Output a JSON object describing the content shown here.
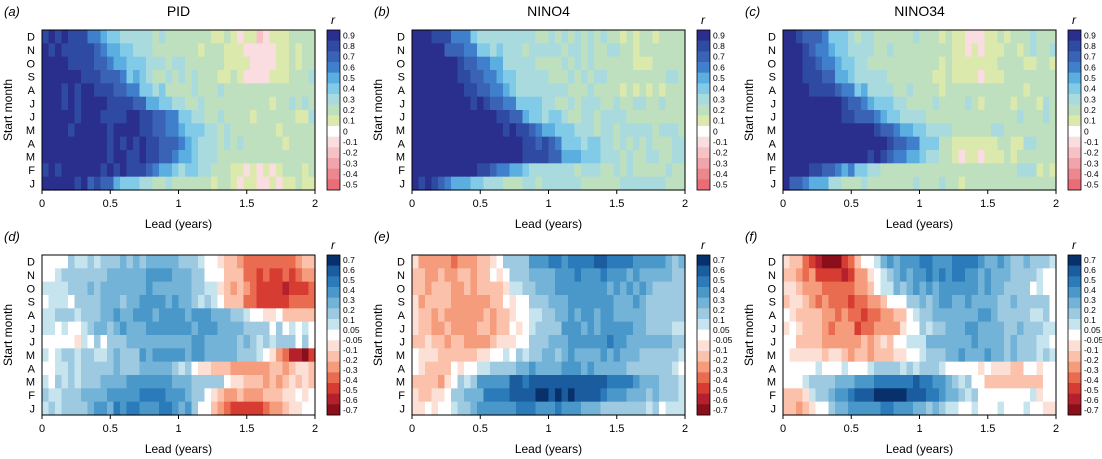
{
  "chart_data": [
    {
      "type": "heatmap",
      "panel_label": "(a)",
      "title": "PID",
      "xlabel": "Lead (years)",
      "ylabel": "Start month",
      "xlim": [
        0,
        2
      ],
      "x_ticks": [
        "0",
        "0.5",
        "1",
        "1.5",
        "2"
      ],
      "y_categories": [
        "D",
        "N",
        "O",
        "S",
        "A",
        "J",
        "J",
        "M",
        "A",
        "M",
        "F",
        "J"
      ],
      "colorbar": {
        "label": "r",
        "levels": [
          "0.9",
          "0.8",
          "0.7",
          "0.6",
          "0.5",
          "0.4",
          "0.3",
          "0.2",
          "0.1",
          "0",
          "-0.1",
          "-0.2",
          "-0.3",
          "-0.4",
          "-0.5"
        ]
      },
      "pattern": {
        "decay_center": [
          0.45,
          0.5,
          0.55,
          0.6,
          0.68,
          0.8,
          0.95,
          1.0,
          1.02,
          1.02,
          0.9,
          0.55
        ],
        "high": 0.85,
        "tail": 0.15,
        "neg_at": 1.6,
        "neg_depth": 0.2,
        "neg_rows": [
          0,
          1,
          2,
          3,
          10,
          11
        ]
      }
    },
    {
      "type": "heatmap",
      "panel_label": "(b)",
      "title": "NINO4",
      "xlabel": "Lead (years)",
      "ylabel": "Start month",
      "xlim": [
        0,
        2
      ],
      "x_ticks": [
        "0",
        "0.5",
        "1",
        "1.5",
        "2"
      ],
      "y_categories": [
        "D",
        "N",
        "O",
        "S",
        "A",
        "J",
        "J",
        "M",
        "A",
        "M",
        "F",
        "J"
      ],
      "colorbar": {
        "label": "r",
        "levels": [
          "0.9",
          "0.8",
          "0.7",
          "0.6",
          "0.5",
          "0.4",
          "0.3",
          "0.2",
          "0.1",
          "0",
          "-0.1",
          "-0.2",
          "-0.3",
          "-0.4",
          "-0.5"
        ]
      },
      "pattern": {
        "decay_center": [
          0.35,
          0.4,
          0.5,
          0.55,
          0.6,
          0.7,
          0.8,
          0.95,
          1.05,
          1.1,
          0.7,
          0.3
        ],
        "high": 0.9,
        "tail": 0.2,
        "neg_at": 1.7,
        "neg_depth": 0.1,
        "neg_rows": [
          0,
          1,
          2,
          3,
          4
        ]
      }
    },
    {
      "type": "heatmap",
      "panel_label": "(c)",
      "title": "NINO34",
      "xlabel": "Lead (years)",
      "ylabel": "Start month",
      "xlim": [
        0,
        2
      ],
      "x_ticks": [
        "0",
        "0.5",
        "1",
        "1.5",
        "2"
      ],
      "y_categories": [
        "D",
        "N",
        "O",
        "S",
        "A",
        "J",
        "J",
        "M",
        "A",
        "M",
        "F",
        "J"
      ],
      "colorbar": {
        "label": "r",
        "levels": [
          "0.9",
          "0.8",
          "0.7",
          "0.6",
          "0.5",
          "0.4",
          "0.3",
          "0.2",
          "0.1",
          "0",
          "-0.1",
          "-0.2",
          "-0.3",
          "-0.4",
          "-0.5"
        ]
      },
      "pattern": {
        "decay_center": [
          0.3,
          0.32,
          0.35,
          0.4,
          0.5,
          0.6,
          0.7,
          0.85,
          0.95,
          0.9,
          0.45,
          0.2
        ],
        "high": 0.9,
        "tail": 0.15,
        "neg_at": 1.4,
        "neg_depth": 0.15,
        "neg_rows": [
          0,
          1,
          2,
          3,
          8,
          9
        ]
      }
    },
    {
      "type": "heatmap",
      "panel_label": "(d)",
      "title": "",
      "xlabel": "Lead (years)",
      "ylabel": "Start month",
      "xlim": [
        0,
        2
      ],
      "x_ticks": [
        "0",
        "0.5",
        "1",
        "1.5",
        "2"
      ],
      "y_categories": [
        "D",
        "N",
        "O",
        "S",
        "A",
        "J",
        "J",
        "M",
        "A",
        "M",
        "F",
        "J"
      ],
      "colorbar": {
        "label": "r",
        "levels": [
          "0.7",
          "0.6",
          "0.5",
          "0.4",
          "0.3",
          "0.2",
          "0.1",
          "0.05",
          "-0.05",
          "-0.1",
          "-0.2",
          "-0.3",
          "-0.4",
          "-0.5",
          "-0.6",
          "-0.7"
        ]
      },
      "pattern": {
        "rows": [
          {
            "pos_center": 1.0,
            "pos_width": 0.5,
            "pos_amp": 0.25,
            "neg_center": 1.6,
            "neg_width": 0.3,
            "neg_amp": -0.45
          },
          {
            "pos_center": 0.9,
            "pos_width": 0.5,
            "pos_amp": 0.3,
            "neg_center": 1.65,
            "neg_width": 0.3,
            "neg_amp": -0.5
          },
          {
            "pos_center": 0.9,
            "pos_width": 0.5,
            "pos_amp": 0.3,
            "neg_center": 1.7,
            "neg_width": 0.3,
            "neg_amp": -0.55
          },
          {
            "pos_center": 0.9,
            "pos_width": 0.45,
            "pos_amp": 0.3,
            "neg_center": 1.7,
            "neg_width": 0.3,
            "neg_amp": -0.5
          },
          {
            "pos_center": 0.9,
            "pos_width": 0.5,
            "pos_amp": 0.35,
            "neg_center": 1.8,
            "neg_width": 0.25,
            "neg_amp": -0.2
          },
          {
            "pos_center": 0.9,
            "pos_width": 0.5,
            "pos_amp": 0.35,
            "neg_center": 0.2,
            "neg_width": 0.15,
            "neg_amp": -0.1
          },
          {
            "pos_center": 1.0,
            "pos_width": 0.5,
            "pos_amp": 0.3,
            "neg_center": 0.3,
            "neg_width": 0.15,
            "neg_amp": -0.1
          },
          {
            "pos_center": 1.0,
            "pos_width": 0.45,
            "pos_amp": 0.3,
            "neg_center": 1.9,
            "neg_width": 0.15,
            "neg_amp": -0.6
          },
          {
            "pos_center": 0.8,
            "pos_width": 0.35,
            "pos_amp": 0.25,
            "neg_center": 1.5,
            "neg_width": 0.3,
            "neg_amp": -0.3
          },
          {
            "pos_center": 0.8,
            "pos_width": 0.4,
            "pos_amp": 0.35,
            "neg_center": 1.6,
            "neg_width": 0.25,
            "neg_amp": -0.2
          },
          {
            "pos_center": 0.8,
            "pos_width": 0.4,
            "pos_amp": 0.45,
            "neg_center": 1.45,
            "neg_width": 0.25,
            "neg_amp": -0.35
          },
          {
            "pos_center": 0.8,
            "pos_width": 0.4,
            "pos_amp": 0.45,
            "neg_center": 1.45,
            "neg_width": 0.2,
            "neg_amp": -0.6
          }
        ]
      }
    },
    {
      "type": "heatmap",
      "panel_label": "(e)",
      "title": "",
      "xlabel": "Lead (years)",
      "ylabel": "Start month",
      "xlim": [
        0,
        2
      ],
      "x_ticks": [
        "0",
        "0.5",
        "1",
        "1.5",
        "2"
      ],
      "y_categories": [
        "D",
        "N",
        "O",
        "S",
        "A",
        "J",
        "J",
        "M",
        "A",
        "M",
        "F",
        "J"
      ],
      "colorbar": {
        "label": "r",
        "levels": [
          "0.7",
          "0.6",
          "0.5",
          "0.4",
          "0.3",
          "0.2",
          "0.1",
          "0.05",
          "-0.05",
          "-0.1",
          "-0.2",
          "-0.3",
          "-0.4",
          "-0.5",
          "-0.6",
          "-0.7"
        ]
      },
      "pattern": {
        "rows": [
          {
            "pos_center": 1.35,
            "pos_width": 0.5,
            "pos_amp": 0.5,
            "neg_center": 0.35,
            "neg_width": 0.25,
            "neg_amp": -0.35
          },
          {
            "pos_center": 1.3,
            "pos_width": 0.5,
            "pos_amp": 0.4,
            "neg_center": 0.35,
            "neg_width": 0.3,
            "neg_amp": -0.3
          },
          {
            "pos_center": 1.3,
            "pos_width": 0.5,
            "pos_amp": 0.35,
            "neg_center": 0.4,
            "neg_width": 0.3,
            "neg_amp": -0.3
          },
          {
            "pos_center": 1.3,
            "pos_width": 0.45,
            "pos_amp": 0.35,
            "neg_center": 0.45,
            "neg_width": 0.35,
            "neg_amp": -0.3
          },
          {
            "pos_center": 1.3,
            "pos_width": 0.45,
            "pos_amp": 0.35,
            "neg_center": 0.5,
            "neg_width": 0.35,
            "neg_amp": -0.3
          },
          {
            "pos_center": 1.3,
            "pos_width": 0.45,
            "pos_amp": 0.35,
            "neg_center": 0.5,
            "neg_width": 0.35,
            "neg_amp": -0.3
          },
          {
            "pos_center": 1.3,
            "pos_width": 0.45,
            "pos_amp": 0.4,
            "neg_center": 0.5,
            "neg_width": 0.35,
            "neg_amp": -0.3
          },
          {
            "pos_center": 1.3,
            "pos_width": 0.5,
            "pos_amp": 0.3,
            "neg_center": 0.4,
            "neg_width": 0.3,
            "neg_amp": -0.2
          },
          {
            "pos_center": 1.2,
            "pos_width": 0.5,
            "pos_amp": 0.3,
            "neg_center": 0.2,
            "neg_width": 0.15,
            "neg_amp": -0.2
          },
          {
            "pos_center": 1.1,
            "pos_width": 0.5,
            "pos_amp": 0.6,
            "neg_center": 0.15,
            "neg_width": 0.15,
            "neg_amp": -0.3
          },
          {
            "pos_center": 1.0,
            "pos_width": 0.5,
            "pos_amp": 0.6,
            "neg_center": 0.15,
            "neg_width": 0.15,
            "neg_amp": -0.25
          },
          {
            "pos_center": 0.9,
            "pos_width": 0.5,
            "pos_amp": 0.4,
            "neg_center": 0.15,
            "neg_width": 0.15,
            "neg_amp": -0.2
          }
        ]
      }
    },
    {
      "type": "heatmap",
      "panel_label": "(f)",
      "title": "",
      "xlabel": "Lead (years)",
      "ylabel": "Start month",
      "xlim": [
        0,
        2
      ],
      "x_ticks": [
        "0",
        "0.5",
        "1",
        "1.5",
        "2"
      ],
      "y_categories": [
        "D",
        "N",
        "O",
        "S",
        "A",
        "J",
        "J",
        "M",
        "A",
        "M",
        "F",
        "J"
      ],
      "colorbar": {
        "label": "r",
        "levels": [
          "0.7",
          "0.6",
          "0.5",
          "0.4",
          "0.3",
          "0.2",
          "0.1",
          "0.05",
          "-0.05",
          "-0.1",
          "-0.2",
          "-0.3",
          "-0.4",
          "-0.5",
          "-0.6",
          "-0.7"
        ]
      },
      "pattern": {
        "rows": [
          {
            "pos_center": 1.2,
            "pos_width": 0.4,
            "pos_amp": 0.45,
            "neg_center": 0.35,
            "neg_width": 0.15,
            "neg_amp": -0.7
          },
          {
            "pos_center": 1.2,
            "pos_width": 0.4,
            "pos_amp": 0.4,
            "neg_center": 0.4,
            "neg_width": 0.2,
            "neg_amp": -0.55
          },
          {
            "pos_center": 1.2,
            "pos_width": 0.4,
            "pos_amp": 0.35,
            "neg_center": 0.45,
            "neg_width": 0.2,
            "neg_amp": -0.45
          },
          {
            "pos_center": 1.3,
            "pos_width": 0.4,
            "pos_amp": 0.3,
            "neg_center": 0.5,
            "neg_width": 0.25,
            "neg_amp": -0.4
          },
          {
            "pos_center": 1.3,
            "pos_width": 0.4,
            "pos_amp": 0.3,
            "neg_center": 0.6,
            "neg_width": 0.25,
            "neg_amp": -0.45
          },
          {
            "pos_center": 1.3,
            "pos_width": 0.4,
            "pos_amp": 0.3,
            "neg_center": 0.6,
            "neg_width": 0.3,
            "neg_amp": -0.4
          },
          {
            "pos_center": 1.3,
            "pos_width": 0.4,
            "pos_amp": 0.3,
            "neg_center": 0.6,
            "neg_width": 0.3,
            "neg_amp": -0.3
          },
          {
            "pos_center": 1.3,
            "pos_width": 0.4,
            "pos_amp": 0.3,
            "neg_center": 0.7,
            "neg_width": 0.3,
            "neg_amp": -0.25
          },
          {
            "pos_center": 1.2,
            "pos_width": 0.4,
            "pos_amp": 0.2,
            "neg_center": 1.5,
            "neg_width": 0.3,
            "neg_amp": -0.2
          },
          {
            "pos_center": 0.9,
            "pos_width": 0.35,
            "pos_amp": 0.5,
            "neg_center": 1.6,
            "neg_width": 0.3,
            "neg_amp": -0.2
          },
          {
            "pos_center": 0.8,
            "pos_width": 0.3,
            "pos_amp": 0.7,
            "neg_center": 0.1,
            "neg_width": 0.1,
            "neg_amp": -0.2
          },
          {
            "pos_center": 0.7,
            "pos_width": 0.35,
            "pos_amp": 0.4,
            "neg_center": 0.15,
            "neg_width": 0.15,
            "neg_amp": -0.3
          }
        ]
      }
    }
  ]
}
